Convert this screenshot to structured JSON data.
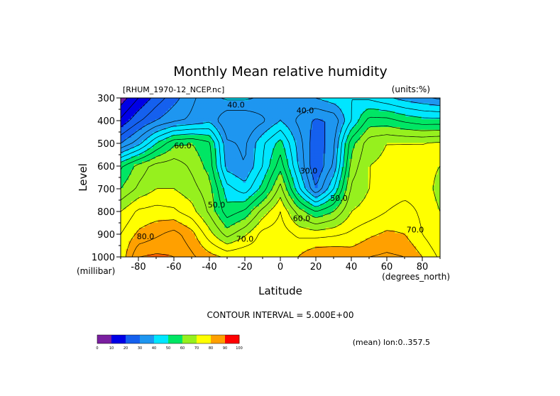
{
  "chart_data": {
    "type": "heatmap",
    "subtype": "filled-contour",
    "title": "Monthly Mean relative humidity",
    "dataset_label": "[RHUM_1970-12_NCEP.nc]",
    "units_label": "(units:%)",
    "xlabel": "Latitude",
    "x_units": "(degrees_north)",
    "ylabel": "Level",
    "y_units": "(millibar)",
    "xlim": [
      -90,
      90
    ],
    "ylim": [
      1000,
      300
    ],
    "x_ticks": [
      -80,
      -60,
      -40,
      -20,
      0,
      20,
      40,
      60,
      80
    ],
    "x_tick_labels": [
      "-80",
      "-60",
      "-40",
      "-20",
      "0",
      "20",
      "40",
      "60",
      "80"
    ],
    "y_ticks": [
      300,
      400,
      500,
      600,
      700,
      800,
      900,
      1000
    ],
    "y_tick_labels": [
      "300",
      "400",
      "500",
      "600",
      "700",
      "800",
      "900",
      "1000"
    ],
    "contour_interval_text": "CONTOUR INTERVAL = 5.000E+00",
    "footnote": "(mean) lon:0..357.5",
    "color_levels": [
      0,
      10,
      20,
      30,
      40,
      50,
      60,
      70,
      80,
      90,
      100
    ],
    "color_level_labels": [
      "0",
      "10",
      "20",
      "30",
      "40",
      "50",
      "60",
      "70",
      "80",
      "90",
      "100"
    ],
    "colors": [
      "#7a1fa0",
      "#0000e6",
      "#1560ee",
      "#1e96f0",
      "#00e6ff",
      "#00e664",
      "#96f01e",
      "#ffff00",
      "#ffa000",
      "#ff6000",
      "#ff0000"
    ],
    "contour_labels": [
      {
        "text": "40.0",
        "lat": -25,
        "p": 330
      },
      {
        "text": "40.0",
        "lat": 14,
        "p": 355
      },
      {
        "text": "60.0",
        "lat": -55,
        "p": 510
      },
      {
        "text": "30.0",
        "lat": 16,
        "p": 620
      },
      {
        "text": "50.0",
        "lat": -36,
        "p": 770
      },
      {
        "text": "50.0",
        "lat": 33,
        "p": 740
      },
      {
        "text": "60.0",
        "lat": 12,
        "p": 830
      },
      {
        "text": "70.0",
        "lat": -20,
        "p": 920
      },
      {
        "text": "70.0",
        "lat": 76,
        "p": 880
      },
      {
        "text": "80.0",
        "lat": -76,
        "p": 910
      }
    ],
    "control_grid": {
      "lats": [
        -90,
        -80,
        -70,
        -60,
        -50,
        -40,
        -30,
        -20,
        -10,
        0,
        10,
        20,
        30,
        40,
        50,
        60,
        70,
        80,
        90
      ],
      "levels": [
        300,
        400,
        500,
        600,
        700,
        800,
        900,
        1000
      ],
      "rh": [
        [
          7,
          15,
          22,
          28,
          34,
          38,
          41,
          41,
          39,
          37,
          39,
          40,
          43,
          45,
          44,
          41,
          38,
          36,
          34
        ],
        [
          16,
          24,
          30,
          34,
          36,
          39,
          30,
          30,
          34,
          40,
          34,
          29,
          31,
          45,
          57,
          57,
          54,
          52,
          52
        ],
        [
          30,
          38,
          50,
          59,
          60,
          56,
          36,
          34,
          44,
          52,
          38,
          26,
          34,
          58,
          68,
          70,
          70,
          70,
          71
        ],
        [
          54,
          62,
          67,
          68,
          64,
          58,
          38,
          35,
          45,
          58,
          40,
          25,
          36,
          62,
          70,
          71,
          72,
          72,
          70
        ],
        [
          60,
          66,
          70,
          70,
          67,
          62,
          47,
          42,
          52,
          67,
          47,
          30,
          45,
          66,
          70,
          72,
          73,
          73,
          68
        ],
        [
          70,
          76,
          77,
          76,
          72,
          64,
          52,
          56,
          67,
          75,
          63,
          55,
          60,
          70,
          72,
          75,
          77,
          74,
          70
        ],
        [
          75,
          81,
          84,
          87,
          82,
          72,
          63,
          69,
          77,
          78,
          74,
          73,
          74,
          76,
          79,
          81,
          80,
          75,
          70
        ],
        [
          76,
          90,
          91,
          90,
          86,
          82,
          79,
          80,
          78,
          76,
          80,
          85,
          85,
          83,
          85,
          86,
          85,
          80,
          74
        ]
      ]
    }
  }
}
